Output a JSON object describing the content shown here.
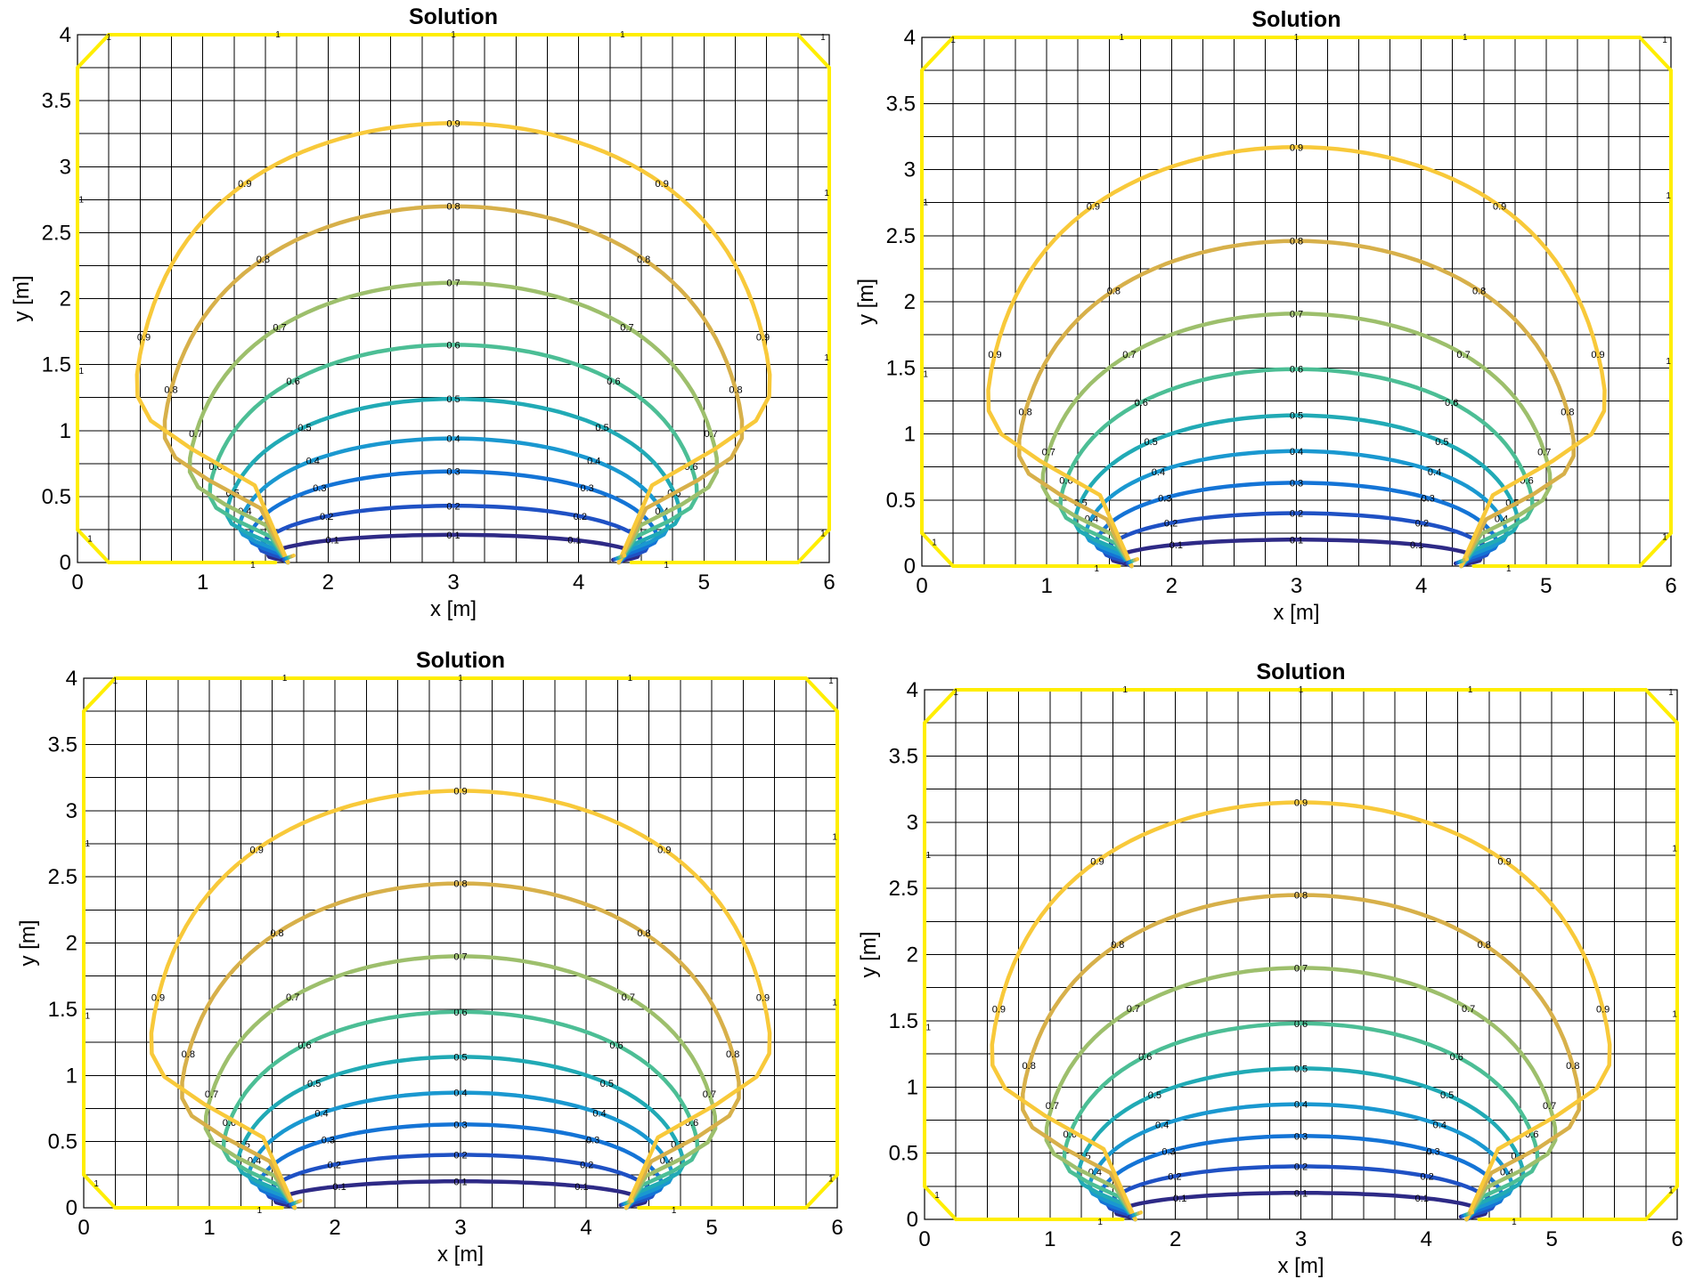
{
  "colors": {
    "levels": {
      "0.1": "#2e2a86",
      "0.2": "#1f51c4",
      "0.3": "#1474d6",
      "0.4": "#1a98d0",
      "0.5": "#21aab5",
      "0.6": "#4cbe95",
      "0.7": "#9dbf6c",
      "0.8": "#d7b04a",
      "0.9": "#f8c93a",
      "1": "#ffee00"
    },
    "boundary": "#ffee00",
    "grid": "#000000"
  },
  "chart_data": [
    {
      "type": "contour",
      "title": "Solution",
      "xlabel": "x [m]",
      "ylabel": "y [m]",
      "xlim": [
        0,
        6
      ],
      "ylim": [
        0,
        4
      ],
      "xticks": [
        "0",
        "1",
        "2",
        "3",
        "4",
        "5",
        "6"
      ],
      "yticks": [
        "0",
        "0.5",
        "1",
        "1.5",
        "2",
        "2.5",
        "3",
        "3.5",
        "4"
      ],
      "grid": true,
      "mesh": {
        "nx": 24,
        "ny": 16
      },
      "sources": [
        {
          "x": 1.68,
          "y": 0
        },
        {
          "x": 4.32,
          "y": 0
        }
      ],
      "boundary_level": "1",
      "levels": [
        {
          "value": "0.1",
          "peak_y": 0.21
        },
        {
          "value": "0.2",
          "peak_y": 0.43
        },
        {
          "value": "0.3",
          "peak_y": 0.69
        },
        {
          "value": "0.4",
          "peak_y": 0.94
        },
        {
          "value": "0.5",
          "peak_y": 1.24
        },
        {
          "value": "0.6",
          "peak_y": 1.65
        },
        {
          "value": "0.7",
          "peak_y": 2.12
        },
        {
          "value": "0.8",
          "peak_y": 2.7
        },
        {
          "value": "0.9",
          "peak_y": 3.33
        }
      ]
    },
    {
      "type": "contour",
      "title": "Solution",
      "xlabel": "x [m]",
      "ylabel": "y [m]",
      "xlim": [
        0,
        6
      ],
      "ylim": [
        0,
        4
      ],
      "xticks": [
        "0",
        "1",
        "2",
        "3",
        "4",
        "5",
        "6"
      ],
      "yticks": [
        "0",
        "0.5",
        "1",
        "1.5",
        "2",
        "2.5",
        "3",
        "3.5",
        "4"
      ],
      "grid": true,
      "mesh": {
        "nx": 24,
        "ny": 16
      },
      "sources": [
        {
          "x": 1.68,
          "y": 0
        },
        {
          "x": 4.32,
          "y": 0
        }
      ],
      "boundary_level": "1",
      "levels": [
        {
          "value": "0.1",
          "peak_y": 0.2
        },
        {
          "value": "0.2",
          "peak_y": 0.4
        },
        {
          "value": "0.3",
          "peak_y": 0.63
        },
        {
          "value": "0.4",
          "peak_y": 0.87
        },
        {
          "value": "0.5",
          "peak_y": 1.14
        },
        {
          "value": "0.6",
          "peak_y": 1.49
        },
        {
          "value": "0.7",
          "peak_y": 1.91
        },
        {
          "value": "0.8",
          "peak_y": 2.46
        },
        {
          "value": "0.9",
          "peak_y": 3.17
        }
      ]
    },
    {
      "type": "contour",
      "title": "Solution",
      "xlabel": "x [m]",
      "ylabel": "y [m]",
      "xlim": [
        0,
        6
      ],
      "ylim": [
        0,
        4
      ],
      "xticks": [
        "0",
        "1",
        "2",
        "3",
        "4",
        "5",
        "6"
      ],
      "yticks": [
        "0",
        "0.5",
        "1",
        "1.5",
        "2",
        "2.5",
        "3",
        "3.5",
        "4"
      ],
      "grid": true,
      "mesh": {
        "nx": 24,
        "ny": 16
      },
      "sources": [
        {
          "x": 1.68,
          "y": 0
        },
        {
          "x": 4.32,
          "y": 0
        }
      ],
      "boundary_level": "1",
      "levels": [
        {
          "value": "0.1",
          "peak_y": 0.2
        },
        {
          "value": "0.2",
          "peak_y": 0.4
        },
        {
          "value": "0.3",
          "peak_y": 0.63
        },
        {
          "value": "0.4",
          "peak_y": 0.87
        },
        {
          "value": "0.5",
          "peak_y": 1.14
        },
        {
          "value": "0.6",
          "peak_y": 1.48
        },
        {
          "value": "0.7",
          "peak_y": 1.9
        },
        {
          "value": "0.8",
          "peak_y": 2.45
        },
        {
          "value": "0.9",
          "peak_y": 3.15
        }
      ]
    },
    {
      "type": "contour",
      "title": "Solution",
      "xlabel": "x [m]",
      "ylabel": "y [m]",
      "xlim": [
        0,
        6
      ],
      "ylim": [
        0,
        4
      ],
      "xticks": [
        "0",
        "1",
        "2",
        "3",
        "4",
        "5",
        "6"
      ],
      "yticks": [
        "0",
        "0.5",
        "1",
        "1.5",
        "2",
        "2.5",
        "3",
        "3.5",
        "4"
      ],
      "grid": true,
      "mesh": {
        "nx": 24,
        "ny": 16
      },
      "sources": [
        {
          "x": 1.68,
          "y": 0
        },
        {
          "x": 4.32,
          "y": 0
        }
      ],
      "boundary_level": "1",
      "levels": [
        {
          "value": "0.1",
          "peak_y": 0.2
        },
        {
          "value": "0.2",
          "peak_y": 0.4
        },
        {
          "value": "0.3",
          "peak_y": 0.63
        },
        {
          "value": "0.4",
          "peak_y": 0.87
        },
        {
          "value": "0.5",
          "peak_y": 1.14
        },
        {
          "value": "0.6",
          "peak_y": 1.48
        },
        {
          "value": "0.7",
          "peak_y": 1.9
        },
        {
          "value": "0.8",
          "peak_y": 2.45
        },
        {
          "value": "0.9",
          "peak_y": 3.15
        }
      ]
    }
  ]
}
